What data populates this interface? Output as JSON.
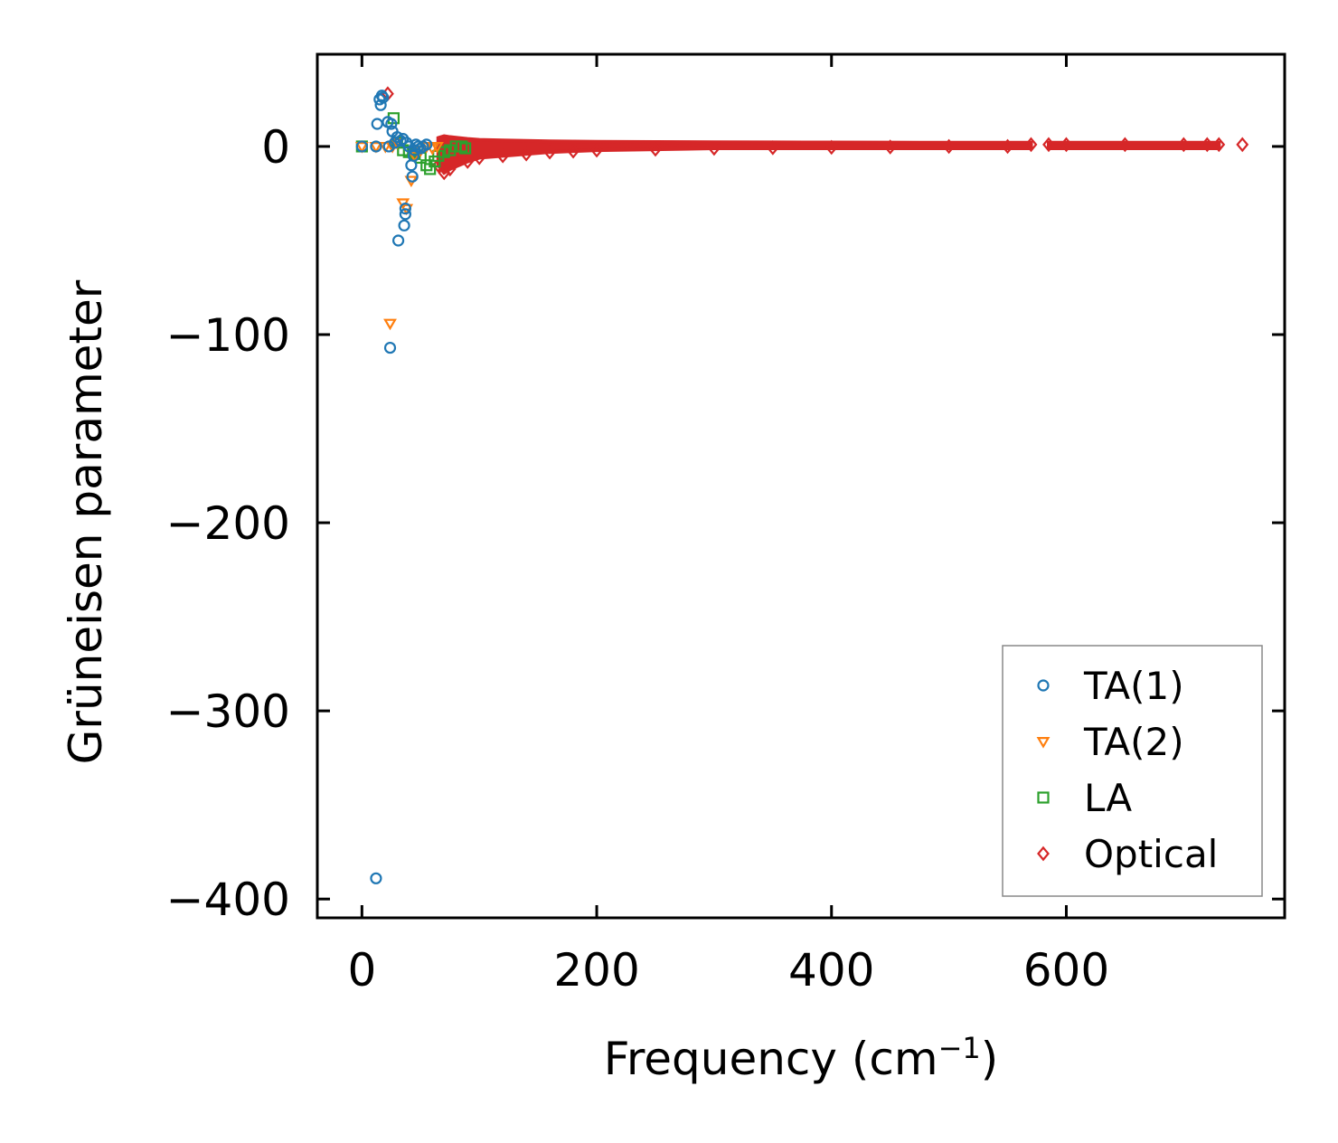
{
  "chart_data": {
    "type": "scatter",
    "xlabel": "Frequency (cm",
    "xlabel_sup": "−1",
    "xlabel_tail": ")",
    "ylabel": "Grüneisen parameter",
    "xlim": [
      -38,
      786
    ],
    "ylim": [
      -410,
      49
    ],
    "xticks": [
      0,
      200,
      400,
      600
    ],
    "yticks": [
      0,
      -100,
      -200,
      -300,
      -400
    ],
    "xtick_labels": [
      "0",
      "200",
      "400",
      "600"
    ],
    "ytick_labels": [
      "0",
      "−100",
      "−200",
      "−300",
      "−400"
    ],
    "grid": false,
    "legend_position": "lower-right",
    "series": [
      {
        "name": "TA(1)",
        "marker": "circle",
        "color": "#1f77b4",
        "points": [
          [
            0,
            0
          ],
          [
            12,
            0
          ],
          [
            13,
            12
          ],
          [
            15,
            25
          ],
          [
            16,
            22
          ],
          [
            17,
            27
          ],
          [
            18,
            26
          ],
          [
            22,
            13
          ],
          [
            23,
            0
          ],
          [
            24,
            -107
          ],
          [
            25,
            12
          ],
          [
            26,
            8
          ],
          [
            28,
            2
          ],
          [
            30,
            5
          ],
          [
            31,
            -50
          ],
          [
            33,
            3
          ],
          [
            35,
            4
          ],
          [
            36,
            -42
          ],
          [
            37,
            -36
          ],
          [
            37,
            -33
          ],
          [
            38,
            2
          ],
          [
            40,
            0
          ],
          [
            42,
            -10
          ],
          [
            43,
            -16
          ],
          [
            44,
            -5
          ],
          [
            45,
            -2
          ],
          [
            46,
            1
          ],
          [
            48,
            0
          ],
          [
            50,
            -1
          ],
          [
            52,
            0
          ],
          [
            55,
            1
          ],
          [
            12,
            -389
          ]
        ]
      },
      {
        "name": "TA(2)",
        "marker": "triangle-down",
        "color": "#ff7f0e",
        "points": [
          [
            0,
            0
          ],
          [
            12,
            0
          ],
          [
            20,
            0
          ],
          [
            24,
            -94
          ],
          [
            26,
            0
          ],
          [
            30,
            2
          ],
          [
            35,
            -30
          ],
          [
            38,
            -33
          ],
          [
            42,
            -18
          ],
          [
            45,
            -5
          ],
          [
            50,
            -2
          ],
          [
            55,
            0
          ],
          [
            60,
            -1
          ],
          [
            64,
            0
          ]
        ]
      },
      {
        "name": "LA",
        "marker": "square",
        "color": "#2ca02c",
        "points": [
          [
            0,
            0
          ],
          [
            27,
            15
          ],
          [
            30,
            2
          ],
          [
            35,
            -2
          ],
          [
            40,
            -3
          ],
          [
            45,
            -4
          ],
          [
            50,
            -6
          ],
          [
            55,
            -10
          ],
          [
            58,
            -12
          ],
          [
            62,
            -8
          ],
          [
            65,
            -5
          ],
          [
            70,
            -3
          ],
          [
            75,
            -2
          ],
          [
            80,
            0
          ],
          [
            85,
            0
          ],
          [
            88,
            -1
          ]
        ]
      },
      {
        "name": "Optical",
        "marker": "diamond",
        "color": "#d62728",
        "points": [
          [
            22,
            28
          ],
          [
            65,
            -10
          ],
          [
            70,
            -14
          ],
          [
            75,
            -12
          ],
          [
            90,
            -8
          ],
          [
            100,
            -6
          ],
          [
            120,
            -5
          ],
          [
            140,
            -4
          ],
          [
            160,
            -3
          ],
          [
            180,
            -2.5
          ],
          [
            200,
            -2
          ],
          [
            250,
            -1.5
          ],
          [
            300,
            -1
          ],
          [
            350,
            -0.7
          ],
          [
            400,
            -0.5
          ],
          [
            450,
            -0.3
          ],
          [
            500,
            0
          ],
          [
            550,
            0
          ],
          [
            570,
            1
          ],
          [
            585,
            1
          ],
          [
            600,
            1
          ],
          [
            650,
            1
          ],
          [
            700,
            1
          ],
          [
            720,
            1
          ],
          [
            730,
            1
          ],
          [
            750,
            1
          ]
        ]
      }
    ]
  }
}
